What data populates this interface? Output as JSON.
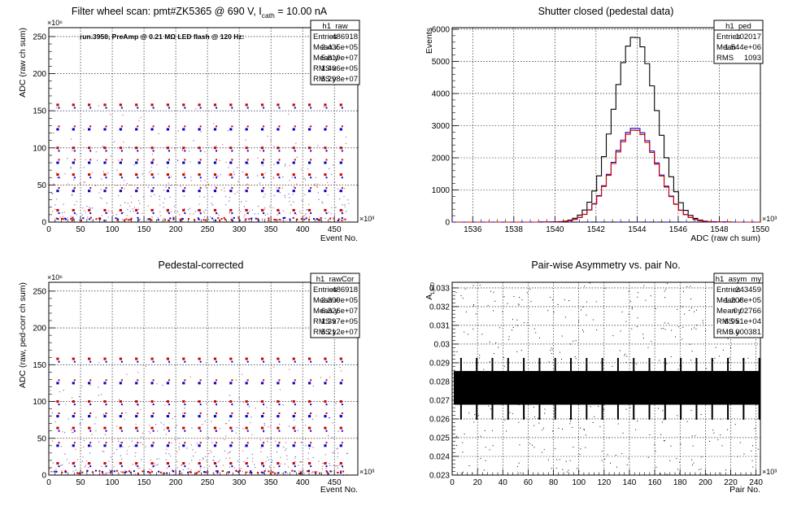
{
  "chart_data": [
    {
      "id": "raw",
      "type": "scatter",
      "title": "Filter wheel scan: pmt#ZK5365 @   690 V, I",
      "title_sub": "cath",
      "title_tail": " = 10.00 nA",
      "annotation": "run.3950, PreAmp @ 0.21 MΩ LED flash @  120 Hz:",
      "xlabel": "Event No.",
      "ylabel": "ADC (raw ch sum)",
      "x_exp": "×10³",
      "y_exp": "×10⁶",
      "xlim": [
        0,
        486.918
      ],
      "ylim": [
        0,
        262
      ],
      "xticks": [
        0,
        50,
        100,
        150,
        200,
        250,
        300,
        350,
        400,
        450
      ],
      "yticks": [
        0,
        50,
        100,
        150,
        200,
        250
      ],
      "grid": true,
      "stats": {
        "name": "h1_raw",
        "rows": [
          [
            "Entries",
            "486918"
          ],
          [
            "Mean x",
            "2.435e+05"
          ],
          [
            "Mean y",
            "5.819e+07"
          ],
          [
            "RMS x",
            "1.406e+05"
          ],
          [
            "RMS y",
            "5.298e+07"
          ]
        ]
      },
      "pattern": {
        "period": 24.8,
        "start": 14,
        "levels": [
          158,
          125,
          100,
          80,
          64,
          42,
          16
        ],
        "series_colors": [
          "#cc0000",
          "#0000cc"
        ]
      }
    },
    {
      "id": "ped",
      "type": "line",
      "title": "Shutter closed (pedestal data)",
      "xlabel": "ADC (raw ch sum)",
      "ylabel": "Events",
      "x_exp": "×10³",
      "xlim": [
        1535,
        1550
      ],
      "ylim": [
        0,
        6050
      ],
      "xticks": [
        1536,
        1538,
        1540,
        1542,
        1544,
        1546,
        1548,
        1550
      ],
      "yticks": [
        0,
        1000,
        2000,
        3000,
        4000,
        5000,
        6000
      ],
      "grid": true,
      "stats": {
        "name": "h1_ped",
        "rows": [
          [
            "Entries",
            "102017"
          ],
          [
            "Mean",
            "1.544e+06"
          ],
          [
            "RMS",
            "1093"
          ]
        ]
      },
      "series": [
        {
          "color": "#000000",
          "peak": 5780,
          "mean": 1543.9,
          "sigma": 1.05
        },
        {
          "color": "#0000cc",
          "peak": 2930,
          "mean": 1543.9,
          "sigma": 1.1
        },
        {
          "color": "#cc0000",
          "peak": 2870,
          "mean": 1543.9,
          "sigma": 1.1
        }
      ]
    },
    {
      "id": "rawcor",
      "type": "scatter",
      "title": "Pedestal-corrected",
      "xlabel": "Event No.",
      "ylabel": "ADC (raw, ped-corr ch sum)",
      "x_exp": "×10³",
      "y_exp": "×10⁶",
      "xlim": [
        0,
        486.918
      ],
      "ylim": [
        0,
        262
      ],
      "xticks": [
        0,
        50,
        100,
        150,
        200,
        250,
        300,
        350,
        400,
        450
      ],
      "yticks": [
        0,
        50,
        100,
        150,
        200,
        250
      ],
      "grid": true,
      "stats": {
        "name": "h1_rawCor",
        "rows": [
          [
            "Entries",
            "486918"
          ],
          [
            "Mean x",
            "2.399e+05"
          ],
          [
            "Mean y",
            "6.326e+07"
          ],
          [
            "RMS x",
            "1.397e+05"
          ],
          [
            "RMS y",
            "5.212e+07"
          ]
        ]
      },
      "pattern": {
        "period": 24.8,
        "start": 14,
        "levels": [
          158,
          125,
          100,
          80,
          64,
          40,
          16
        ],
        "series_colors": [
          "#cc0000",
          "#0000cc"
        ]
      }
    },
    {
      "id": "asym",
      "type": "scatter",
      "title": "Pair-wise Asymmetry vs. pair No.",
      "xlabel": "Pair No.",
      "ylabel": "A",
      "ylabel_sub": "LED",
      "x_exp": "×10³",
      "xlim": [
        0,
        243.459
      ],
      "ylim": [
        0.023,
        0.0333
      ],
      "xticks": [
        0,
        20,
        40,
        60,
        80,
        100,
        120,
        140,
        160,
        180,
        200,
        220,
        240
      ],
      "yticks": [
        0.023,
        0.024,
        0.025,
        0.026,
        0.027,
        0.028,
        0.029,
        0.03,
        0.031,
        0.032,
        0.033
      ],
      "grid": true,
      "stats": {
        "name": "h1_asym_my",
        "rows": [
          [
            "Entries",
            "243459"
          ],
          [
            "Mean x",
            "1.208e+05"
          ],
          [
            "Mean y",
            "0.02766"
          ],
          [
            "RMS x",
            "6.951e+04"
          ],
          [
            "RMS y",
            "0.000381"
          ]
        ]
      },
      "band": {
        "center": 0.02766,
        "halfwidth": 0.0009,
        "spike_period": 12.4,
        "spike_start": 7
      }
    }
  ]
}
